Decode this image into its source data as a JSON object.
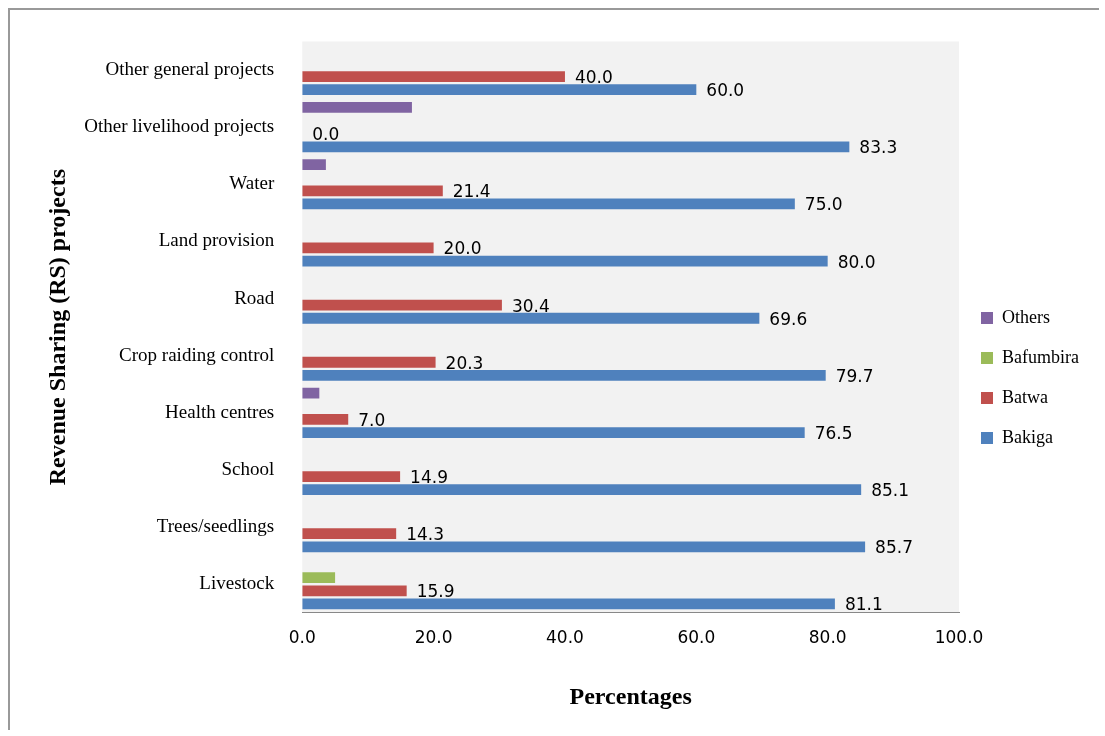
{
  "chart_data": {
    "type": "bar",
    "orientation": "horizontal",
    "xlabel": "Percentages",
    "ylabel": "Revenue Sharing (RS) projects",
    "categories": [
      "Other general projects",
      "Other livelihood projects",
      "Water",
      "Land provision",
      "Road",
      "Crop raiding control",
      "Health centres",
      "School",
      "Trees/seedlings",
      "Livestock"
    ],
    "series": [
      {
        "name": "Others",
        "color": "#8064a2",
        "values": [
          null,
          16.7,
          3.6,
          null,
          null,
          null,
          2.6,
          null,
          null,
          null
        ]
      },
      {
        "name": "Bafumbira",
        "color": "#9bbb59",
        "values": [
          null,
          null,
          null,
          null,
          null,
          null,
          null,
          null,
          null,
          5.0
        ]
      },
      {
        "name": "Batwa",
        "color": "#c0504d",
        "values": [
          40.0,
          0.0,
          21.4,
          20.0,
          30.4,
          20.3,
          7.0,
          14.9,
          14.3,
          15.9
        ],
        "value_labels": [
          "40.0",
          "0.0",
          "21.4",
          "20.0",
          "30.4",
          "20.3",
          "7.0",
          "14.9",
          "14.3",
          "15.9"
        ]
      },
      {
        "name": "Bakiga",
        "color": "#4f81bd",
        "values": [
          60.0,
          83.3,
          75.0,
          80.0,
          69.6,
          79.7,
          76.5,
          85.1,
          85.7,
          81.1
        ],
        "value_labels": [
          "60.0",
          "83.3",
          "75.0",
          "80.0",
          "69.6",
          "79.7",
          "76.5",
          "85.1",
          "85.7",
          "81.1"
        ]
      }
    ],
    "xlim": [
      0,
      100
    ],
    "xticks": [
      {
        "value": 0,
        "label": "0.0"
      },
      {
        "value": 20,
        "label": "20.0"
      },
      {
        "value": 40,
        "label": "40.0"
      },
      {
        "value": 60,
        "label": "60.0"
      },
      {
        "value": 80,
        "label": "80.0"
      },
      {
        "value": 100,
        "label": "100.0"
      }
    ],
    "legend": "right"
  }
}
